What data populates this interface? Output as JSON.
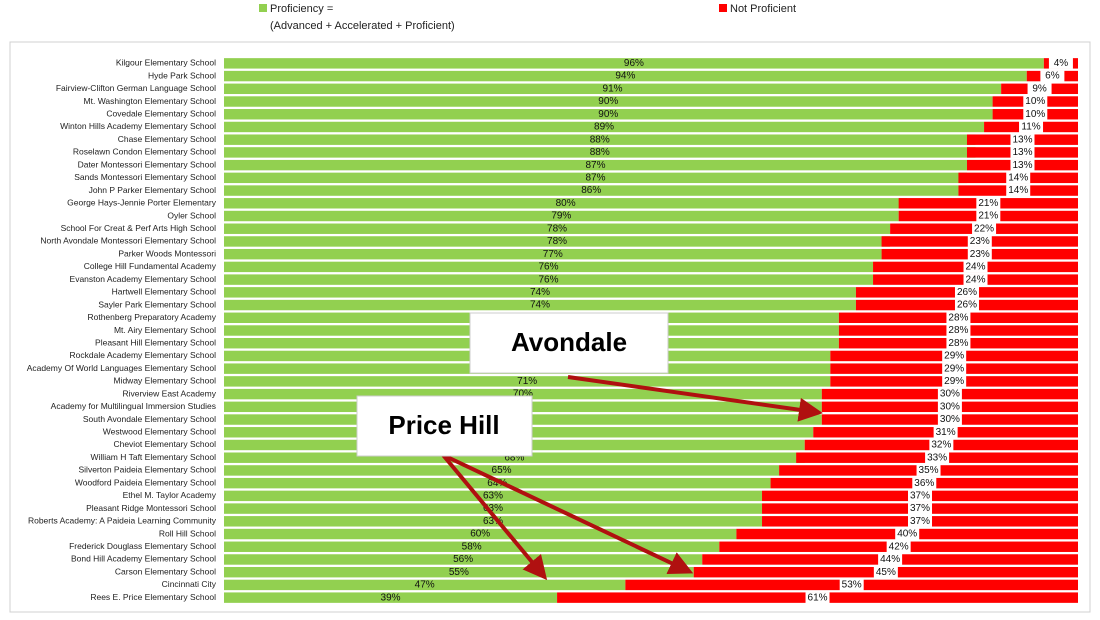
{
  "chart_data": {
    "type": "stacked-bar-horizontal",
    "categories": [
      "Kilgour Elementary School",
      "Hyde Park School",
      "Fairview-Clifton German Language School",
      "Mt. Washington Elementary School",
      "Covedale Elementary School",
      "Winton Hills Academy Elementary School",
      "Chase Elementary School",
      "Roselawn Condon Elementary School",
      "Dater Montessori Elementary School",
      "Sands Montessori Elementary School",
      "John P Parker Elementary School",
      "George Hays-Jennie Porter Elementary",
      "Oyler School",
      "School For Creat & Perf Arts High School",
      "North Avondale Montessori Elementary School",
      "Parker Woods Montessori",
      "College Hill Fundamental Academy",
      "Evanston Academy Elementary School",
      "Hartwell Elementary School",
      "Sayler Park Elementary School",
      "Rothenberg Preparatory Academy",
      "Mt. Airy Elementary School",
      "Pleasant Hill Elementary School",
      "Rockdale Academy Elementary School",
      "Academy Of World Languages Elementary School",
      "Midway Elementary School",
      "Riverview East Academy",
      "Academy for Multilingual Immersion Studies",
      "South Avondale Elementary School",
      "Westwood Elementary School",
      "Cheviot Elementary School",
      "William H Taft Elementary School",
      "Silverton Paideia Elementary School",
      "Woodford Paideia Elementary School",
      "Ethel M. Taylor Academy",
      "Pleasant Ridge Montessori School",
      "Roberts Academy:  A Paideia Learning Community",
      "Roll Hill School",
      "Frederick Douglass Elementary School",
      "Bond Hill Academy Elementary School",
      "Carson Elementary School",
      "Cincinnati City",
      "Rees E. Price Elementary School"
    ],
    "series": [
      {
        "name": "Proficiency =",
        "color": "#92d050",
        "values": [
          96,
          94,
          91,
          90,
          90,
          89,
          88,
          88,
          87,
          87,
          86,
          80,
          79,
          78,
          78,
          77,
          76,
          76,
          74,
          74,
          72,
          72,
          72,
          71,
          71,
          71,
          70,
          70,
          70,
          69,
          68,
          68,
          65,
          64,
          63,
          63,
          63,
          60,
          58,
          56,
          55,
          47,
          39
        ],
        "value_labels": [
          "96%",
          "94%",
          "91%",
          "90%",
          "90%",
          "89%",
          "88%",
          "88%",
          "87%",
          "87%",
          "86%",
          "80%",
          "79%",
          "78%",
          "78%",
          "77%",
          "76%",
          "76%",
          "74%",
          "74%",
          "72%",
          "72%",
          "72%",
          "71%",
          "71%",
          "71%",
          "70%",
          "70%",
          "70%",
          "69%",
          "68%",
          "68%",
          "65%",
          "64%",
          "63%",
          "63%",
          "63%",
          "60%",
          "58%",
          "56%",
          "55%",
          "47%",
          "39%"
        ]
      },
      {
        "name": "Not Proficient",
        "color": "#ff0000",
        "values": [
          4,
          6,
          9,
          10,
          10,
          11,
          13,
          13,
          13,
          14,
          14,
          21,
          21,
          22,
          23,
          23,
          24,
          24,
          26,
          26,
          28,
          28,
          28,
          29,
          29,
          29,
          30,
          30,
          30,
          31,
          32,
          33,
          35,
          36,
          37,
          37,
          37,
          40,
          42,
          44,
          45,
          53,
          61
        ],
        "value_labels": [
          "4%",
          "6%",
          "9%",
          "10%",
          "10%",
          "11%",
          "13%",
          "13%",
          "13%",
          "14%",
          "14%",
          "21%",
          "21%",
          "22%",
          "23%",
          "23%",
          "24%",
          "24%",
          "26%",
          "26%",
          "28%",
          "28%",
          "28%",
          "29%",
          "29%",
          "29%",
          "30%",
          "30%",
          "30%",
          "31%",
          "32%",
          "33%",
          "35%",
          "36%",
          "37%",
          "37%",
          "37%",
          "40%",
          "42%",
          "44%",
          "45%",
          "53%",
          "61%"
        ]
      }
    ],
    "legend_note": "(Advanced + Accelerated + Proficient)",
    "annotations": [
      "Avondale",
      "Price Hill"
    ],
    "xlim": [
      0,
      100
    ]
  }
}
